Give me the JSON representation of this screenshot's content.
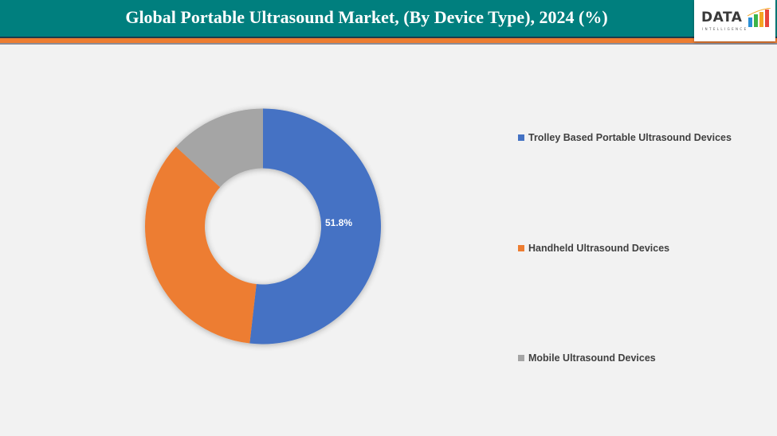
{
  "header": {
    "title": "Global Portable Ultrasound Market, (By Device Type), 2024 (%)",
    "logo_text": "DATA",
    "logo_subtext": "INTELLIGENCE"
  },
  "colors": {
    "header_bg": "#007f7e",
    "accent_stripe": "#ed7d31",
    "background": "#f2f2f2"
  },
  "legend": {
    "items": [
      {
        "label": "Trolley Based Portable Ultrasound Devices",
        "color": "#4472c4"
      },
      {
        "label": "Handheld Ultrasound Devices",
        "color": "#ed7d31"
      },
      {
        "label": "Mobile Ultrasound Devices",
        "color": "#a5a5a5"
      }
    ]
  },
  "data_labels": {
    "trolley": "51.8%"
  },
  "chart_data": {
    "type": "pie",
    "subtype": "doughnut",
    "title": "Global Portable Ultrasound Market, (By Device Type), 2024 (%)",
    "categories": [
      "Trolley Based Portable Ultrasound Devices",
      "Handheld Ultrasound Devices",
      "Mobile Ultrasound Devices"
    ],
    "values": [
      51.8,
      35.0,
      13.2
    ],
    "colors": [
      "#4472c4",
      "#ed7d31",
      "#a5a5a5"
    ],
    "data_labels": [
      "51.8%",
      "",
      ""
    ],
    "legend_position": "right",
    "units": "%"
  }
}
